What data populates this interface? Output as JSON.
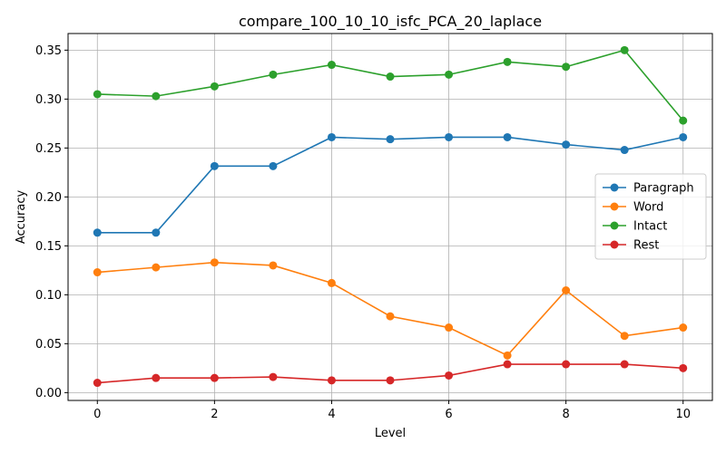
{
  "chart_data": {
    "type": "line",
    "title": "compare_100_10_10_isfc_PCA_20_laplace",
    "xlabel": "Level",
    "ylabel": "Accuracy",
    "x": [
      0,
      1,
      2,
      3,
      4,
      5,
      6,
      7,
      8,
      9,
      10
    ],
    "xlim": [
      -0.5,
      10.5
    ],
    "ylim": [
      -0.008,
      0.367
    ],
    "xticks": [
      0,
      2,
      4,
      6,
      8,
      10
    ],
    "yticks": [
      0.0,
      0.05,
      0.1,
      0.15,
      0.2,
      0.25,
      0.3,
      0.35
    ],
    "ytick_labels": [
      "0.00",
      "0.05",
      "0.10",
      "0.15",
      "0.20",
      "0.25",
      "0.30",
      "0.35"
    ],
    "grid": true,
    "legend_position": "center-right",
    "series": [
      {
        "name": "Paragraph",
        "color": "#1f77b4",
        "values": [
          0.1635,
          0.1635,
          0.2315,
          0.2315,
          0.261,
          0.259,
          0.261,
          0.261,
          0.2535,
          0.248,
          0.261
        ]
      },
      {
        "name": "Word",
        "color": "#ff7f0e",
        "values": [
          0.123,
          0.128,
          0.133,
          0.13,
          0.112,
          0.078,
          0.0665,
          0.038,
          0.1045,
          0.058,
          0.0665
        ]
      },
      {
        "name": "Intact",
        "color": "#2ca02c",
        "values": [
          0.305,
          0.303,
          0.313,
          0.325,
          0.335,
          0.323,
          0.325,
          0.338,
          0.333,
          0.35,
          0.278
        ]
      },
      {
        "name": "Rest",
        "color": "#d62728",
        "values": [
          0.01,
          0.015,
          0.015,
          0.016,
          0.0125,
          0.0125,
          0.0175,
          0.029,
          0.029,
          0.029,
          0.025
        ]
      }
    ]
  }
}
